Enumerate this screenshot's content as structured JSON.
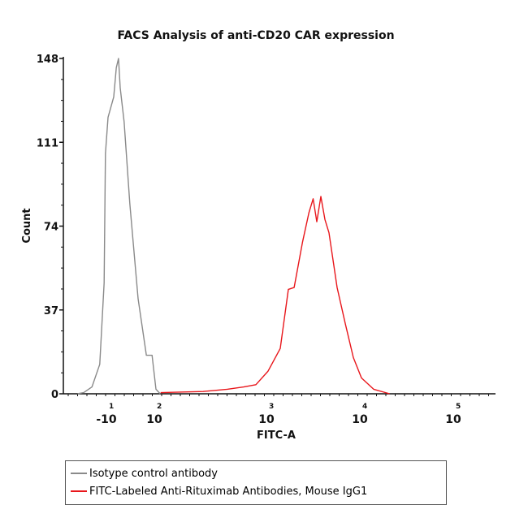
{
  "chart_data": {
    "type": "line",
    "title": "FACS Analysis of anti-CD20 CAR expression",
    "xlabel": "FITC-A",
    "ylabel": "Count",
    "x_scale": "biexponential",
    "ylim": [
      0,
      148
    ],
    "yticks": [
      "0",
      "37",
      "74",
      "111",
      "148"
    ],
    "xticks": [
      {
        "value": -10,
        "base": "-10",
        "exp": "1"
      },
      {
        "value": 100,
        "base": "10",
        "exp": "2"
      },
      {
        "value": 1000,
        "base": "10",
        "exp": "3"
      },
      {
        "value": 10000,
        "base": "10",
        "exp": "4"
      },
      {
        "value": 100000,
        "base": "10",
        "exp": "5"
      }
    ],
    "grid": false,
    "legend_placement": "below",
    "series": [
      {
        "name": "Isotype control antibody",
        "color": "#8a8a8a",
        "x": [
          -80,
          -66,
          -47,
          -29,
          -19,
          -16,
          -10,
          3,
          9,
          14,
          18,
          27,
          40,
          59,
          78,
          91,
          100,
          109
        ],
        "y": [
          0,
          0.5,
          3,
          13,
          49,
          106,
          122,
          131,
          144,
          148,
          135,
          120,
          84,
          42,
          17,
          17,
          2,
          0
        ]
      },
      {
        "name": "FITC-Labeled Anti-Rituximab Antibodies, Mouse IgG1",
        "color": "#e8161b",
        "x": [
          110,
          263,
          433,
          606,
          778,
          1000,
          1351,
          1650,
          1900,
          2340,
          2740,
          3040,
          3325,
          3675,
          4060,
          4490,
          5480,
          6700,
          8180,
          10000,
          13500,
          20000
        ],
        "y": [
          0.5,
          1,
          2,
          3,
          4,
          10,
          20,
          45,
          48,
          66,
          81,
          85,
          77,
          86,
          78,
          70,
          48,
          30,
          16,
          7,
          2,
          0
        ]
      }
    ]
  }
}
